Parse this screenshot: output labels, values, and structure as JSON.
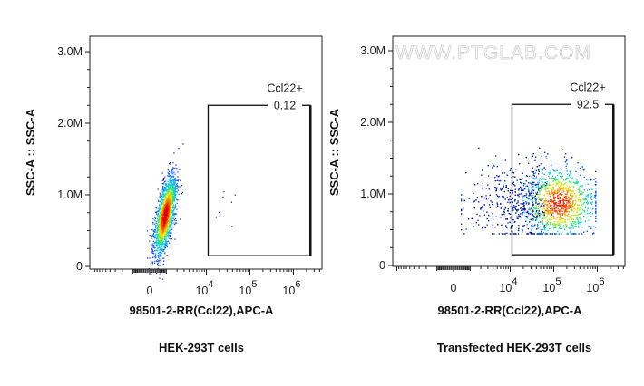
{
  "chart_data": [
    {
      "type": "scatter",
      "title": "HEK-293T cells",
      "xlabel": "98501-2-RR(Ccl22),APC-A",
      "ylabel": "SSC-A :: SSC-A",
      "x_scale": "biexponential",
      "x_tick_labels": [
        {
          "base": "0",
          "exp": ""
        },
        {
          "base": "10",
          "exp": "4"
        },
        {
          "base": "10",
          "exp": "5"
        },
        {
          "base": "10",
          "exp": "6"
        }
      ],
      "x_tick_values": [
        0,
        10000,
        100000,
        1000000
      ],
      "y_tick_labels": [
        "0",
        "1.0M",
        "2.0M",
        "3.0M"
      ],
      "y_tick_values": [
        0,
        1000000,
        2000000,
        3000000
      ],
      "gate": {
        "name": "Ccl22+",
        "percent": "0.12",
        "x_range": [
          11000,
          2500000
        ],
        "y_range": [
          150000,
          2250000
        ]
      },
      "population": {
        "apc_center": 900,
        "ssc_center": 720000,
        "shape": "elongated, tilted",
        "events_in_gate": "few"
      },
      "colormap": [
        "#00008b",
        "#0050ff",
        "#00d0ff",
        "#30e060",
        "#f0f000",
        "#ff7000",
        "#e00000"
      ]
    },
    {
      "type": "scatter",
      "title": "Transfected HEK-293T cells",
      "xlabel": "98501-2-RR(Ccl22),APC-A",
      "ylabel": "SSC-A :: SSC-A",
      "x_scale": "biexponential",
      "x_tick_labels": [
        {
          "base": "0",
          "exp": ""
        },
        {
          "base": "10",
          "exp": "4"
        },
        {
          "base": "10",
          "exp": "5"
        },
        {
          "base": "10",
          "exp": "6"
        }
      ],
      "x_tick_values": [
        0,
        10000,
        100000,
        1000000
      ],
      "y_tick_labels": [
        "0",
        "1.0M",
        "2.0M",
        "3.0M"
      ],
      "y_tick_values": [
        0,
        1000000,
        2000000,
        3000000
      ],
      "gate": {
        "name": "Ccl22+",
        "percent": "92.5",
        "x_range": [
          11000,
          2500000
        ],
        "y_range": [
          150000,
          2250000
        ]
      },
      "population": {
        "apc_center": 130000,
        "ssc_center": 880000,
        "shape": "broad cloud with tail toward low APC"
      },
      "watermark": "WWW.PTGLAB.COM",
      "colormap": [
        "#00008b",
        "#0050ff",
        "#00d0ff",
        "#30e060",
        "#f0f000",
        "#ff7000",
        "#e00000"
      ]
    }
  ]
}
